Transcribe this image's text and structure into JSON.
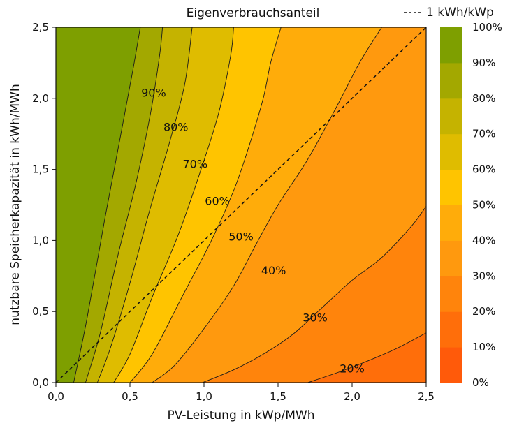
{
  "chart_data": {
    "type": "heatmap",
    "title": "Eigenverbrauchsanteil",
    "xlabel": "PV-Leistung in kWp/MWh",
    "ylabel": "nutzbare Speicherkapazität in kWh/MWh",
    "xlim": [
      0,
      2.5
    ],
    "ylim": [
      0,
      2.5
    ],
    "x_ticks": [
      "0,0",
      "0,5",
      "1,0",
      "1,5",
      "2,0",
      "2,5"
    ],
    "y_ticks": [
      "0,0",
      "0,5",
      "1,0",
      "1,5",
      "2,0",
      "2,5"
    ],
    "reference_line": {
      "label": "1 kWh/kWp",
      "style": "dashed",
      "slope": 1
    },
    "colorbar": {
      "ticks": [
        "0%",
        "10%",
        "20%",
        "30%",
        "40%",
        "50%",
        "60%",
        "70%",
        "80%",
        "90%",
        "100%"
      ],
      "band_colors": [
        "#ff5a0a",
        "#ff6e0a",
        "#ff840c",
        "#ff990e",
        "#ffac0a",
        "#ffc400",
        "#dfbc00",
        "#c5b300",
        "#a3a800",
        "#7e9f00",
        "#579700"
      ]
    },
    "contour_levels": [
      {
        "level": 0.2,
        "label": "20%",
        "label_at": [
          2.0,
          0.1
        ],
        "points": [
          [
            1.7,
            0.0
          ],
          [
            1.9,
            0.07
          ],
          [
            2.1,
            0.15
          ],
          [
            2.3,
            0.24
          ],
          [
            2.5,
            0.35
          ]
        ]
      },
      {
        "level": 0.3,
        "label": "30%",
        "label_at": [
          1.75,
          0.46
        ],
        "points": [
          [
            0.99,
            0.0
          ],
          [
            1.2,
            0.09
          ],
          [
            1.4,
            0.2
          ],
          [
            1.6,
            0.34
          ],
          [
            1.8,
            0.53
          ],
          [
            2.0,
            0.72
          ],
          [
            2.2,
            0.88
          ],
          [
            2.4,
            1.1
          ],
          [
            2.5,
            1.24
          ]
        ]
      },
      {
        "level": 0.4,
        "label": "40%",
        "label_at": [
          1.47,
          0.79
        ],
        "points": [
          [
            0.65,
            0.0
          ],
          [
            0.8,
            0.12
          ],
          [
            1.0,
            0.38
          ],
          [
            1.2,
            0.68
          ],
          [
            1.35,
            0.97
          ],
          [
            1.5,
            1.25
          ],
          [
            1.7,
            1.57
          ],
          [
            1.9,
            1.95
          ],
          [
            2.05,
            2.25
          ],
          [
            2.2,
            2.5
          ]
        ]
      },
      {
        "level": 0.5,
        "label": "50%",
        "label_at": [
          1.25,
          1.03
        ],
        "points": [
          [
            0.5,
            0.0
          ],
          [
            0.65,
            0.2
          ],
          [
            0.85,
            0.6
          ],
          [
            1.05,
            1.0
          ],
          [
            1.2,
            1.35
          ],
          [
            1.3,
            1.65
          ],
          [
            1.4,
            2.0
          ],
          [
            1.45,
            2.25
          ],
          [
            1.52,
            2.5
          ]
        ]
      },
      {
        "level": 0.6,
        "label": "60%",
        "label_at": [
          1.09,
          1.28
        ],
        "points": [
          [
            0.39,
            0.0
          ],
          [
            0.5,
            0.2
          ],
          [
            0.65,
            0.6
          ],
          [
            0.83,
            1.05
          ],
          [
            0.98,
            1.5
          ],
          [
            1.1,
            1.9
          ],
          [
            1.18,
            2.3
          ],
          [
            1.2,
            2.5
          ]
        ]
      },
      {
        "level": 0.7,
        "label": "70%",
        "label_at": [
          0.94,
          1.54
        ],
        "points": [
          [
            0.28,
            0.0
          ],
          [
            0.37,
            0.25
          ],
          [
            0.5,
            0.7
          ],
          [
            0.63,
            1.2
          ],
          [
            0.77,
            1.7
          ],
          [
            0.87,
            2.1
          ],
          [
            0.92,
            2.5
          ]
        ]
      },
      {
        "level": 0.8,
        "label": "80%",
        "label_at": [
          0.81,
          1.8
        ],
        "points": [
          [
            0.2,
            0.0
          ],
          [
            0.3,
            0.35
          ],
          [
            0.42,
            0.9
          ],
          [
            0.54,
            1.4
          ],
          [
            0.64,
            1.9
          ],
          [
            0.7,
            2.3
          ],
          [
            0.72,
            2.5
          ]
        ]
      },
      {
        "level": 0.9,
        "label": "90%",
        "label_at": [
          0.66,
          2.04
        ],
        "points": [
          [
            0.12,
            0.0
          ],
          [
            0.21,
            0.45
          ],
          [
            0.33,
            1.15
          ],
          [
            0.43,
            1.7
          ],
          [
            0.52,
            2.2
          ],
          [
            0.57,
            2.5
          ]
        ]
      }
    ]
  }
}
